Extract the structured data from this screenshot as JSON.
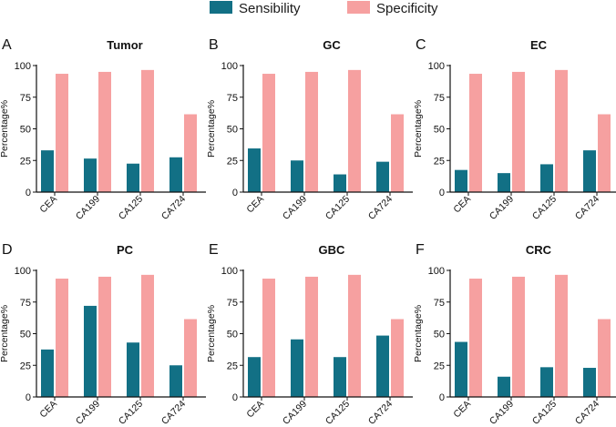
{
  "legend": {
    "sensibility_label": "Sensibility",
    "specificity_label": "Specificity"
  },
  "colors": {
    "sensibility": "#127085",
    "specificity": "#F6A0A0",
    "axis": "#111111"
  },
  "chart_data": [
    {
      "letter": "A",
      "title": "Tumor",
      "type": "bar",
      "categories": [
        "CEA",
        "CA199",
        "CA125",
        "CA724"
      ],
      "series": [
        {
          "name": "Sensibility",
          "values": [
            33,
            26.5,
            22.5,
            27.5
          ]
        },
        {
          "name": "Specificity",
          "values": [
            93.5,
            95,
            96.5,
            61.5
          ]
        }
      ],
      "ylabel": "Percentage%",
      "ylim": [
        0,
        100
      ],
      "yticks": [
        "0",
        "25",
        "50",
        "75",
        "100"
      ]
    },
    {
      "letter": "B",
      "title": "GC",
      "type": "bar",
      "categories": [
        "CEA",
        "CA199",
        "CA125",
        "CA724"
      ],
      "series": [
        {
          "name": "Sensibility",
          "values": [
            34.5,
            25,
            14,
            24
          ]
        },
        {
          "name": "Specificity",
          "values": [
            93.5,
            95,
            96.5,
            61.5
          ]
        }
      ],
      "ylabel": "Percentage%",
      "ylim": [
        0,
        100
      ],
      "yticks": [
        "0",
        "25",
        "50",
        "75",
        "100"
      ]
    },
    {
      "letter": "C",
      "title": "EC",
      "type": "bar",
      "categories": [
        "CEA",
        "CA199",
        "CA125",
        "CA724"
      ],
      "series": [
        {
          "name": "Sensibility",
          "values": [
            17.5,
            15,
            22,
            33
          ]
        },
        {
          "name": "Specificity",
          "values": [
            93.5,
            95,
            96.5,
            61.5
          ]
        }
      ],
      "ylabel": "Percentage%",
      "ylim": [
        0,
        100
      ],
      "yticks": [
        "0",
        "25",
        "50",
        "75",
        "100"
      ]
    },
    {
      "letter": "D",
      "title": "PC",
      "type": "bar",
      "categories": [
        "CEA",
        "CA199",
        "CA125",
        "CA724"
      ],
      "series": [
        {
          "name": "Sensibility",
          "values": [
            37.5,
            72,
            43,
            25
          ]
        },
        {
          "name": "Specificity",
          "values": [
            93.5,
            95,
            96.5,
            61.5
          ]
        }
      ],
      "ylabel": "Percentage%",
      "ylim": [
        0,
        100
      ],
      "yticks": [
        "0",
        "25",
        "50",
        "75",
        "100"
      ]
    },
    {
      "letter": "E",
      "title": "GBC",
      "type": "bar",
      "categories": [
        "CEA",
        "CA199",
        "CA125",
        "CA724"
      ],
      "series": [
        {
          "name": "Sensibility",
          "values": [
            31.5,
            45.5,
            31.5,
            48.5
          ]
        },
        {
          "name": "Specificity",
          "values": [
            93.5,
            95,
            96.5,
            61.5
          ]
        }
      ],
      "ylabel": "Percentage%",
      "ylim": [
        0,
        100
      ],
      "yticks": [
        "0",
        "25",
        "50",
        "75",
        "100"
      ]
    },
    {
      "letter": "F",
      "title": "CRC",
      "type": "bar",
      "categories": [
        "CEA",
        "CA199",
        "CA125",
        "CA724"
      ],
      "series": [
        {
          "name": "Sensibility",
          "values": [
            43.5,
            16,
            23.5,
            23
          ]
        },
        {
          "name": "Specificity",
          "values": [
            93.5,
            95,
            96.5,
            61.5
          ]
        }
      ],
      "ylabel": "Percentage%",
      "ylim": [
        0,
        100
      ],
      "yticks": [
        "0",
        "25",
        "50",
        "75",
        "100"
      ]
    }
  ]
}
